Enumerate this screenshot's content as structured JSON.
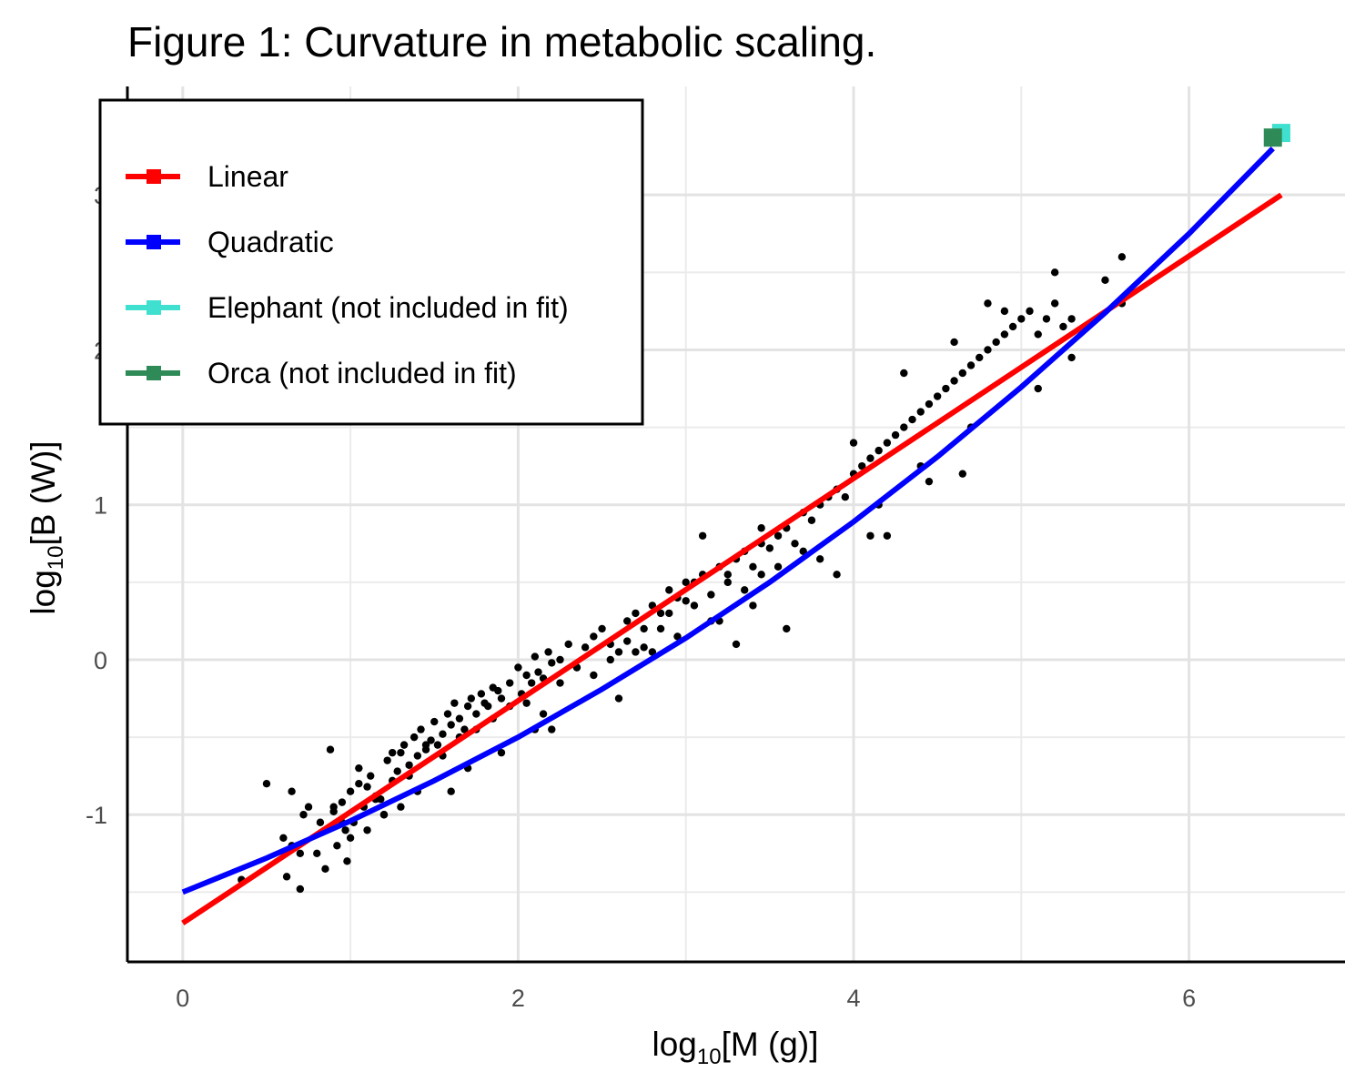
{
  "chart_data": {
    "type": "scatter",
    "title": "Figure 1: Curvature in metabolic scaling.",
    "xlabel": {
      "prefix": "log",
      "subscript": "10",
      "suffix": "[M (g)]"
    },
    "ylabel": {
      "prefix": "log",
      "subscript": "10",
      "suffix": "[B (W)]"
    },
    "xlim": [
      -0.33,
      6.93
    ],
    "ylim": [
      -1.95,
      3.7
    ],
    "x_ticks": [
      0,
      2,
      4,
      6
    ],
    "x_tick_labels": [
      "0",
      "2",
      "4",
      "6"
    ],
    "y_ticks": [
      -1,
      0,
      1,
      2,
      3
    ],
    "y_tick_labels": [
      "-1",
      "0",
      "1",
      "2",
      "3"
    ],
    "grid": true,
    "legend_position": "top-left",
    "colors": {
      "linear": "#ff0000",
      "quadratic": "#0000ff",
      "elephant": "#40e0d0",
      "orca": "#2e8b57",
      "points": "#000000"
    },
    "legend": [
      {
        "label": "Linear",
        "color": "#ff0000"
      },
      {
        "label": "Quadratic",
        "color": "#0000ff"
      },
      {
        "label": "Elephant (not included in fit)",
        "color": "#40e0d0"
      },
      {
        "label": "Orca (not included in fit)",
        "color": "#2e8b57"
      }
    ],
    "series": [
      {
        "name": "Linear",
        "type": "line",
        "x": [
          0,
          6.55
        ],
        "y": [
          -1.7,
          3.0
        ]
      },
      {
        "name": "Quadratic",
        "type": "line",
        "x": [
          0,
          0.5,
          1,
          1.5,
          2,
          2.5,
          3,
          3.5,
          4,
          4.5,
          5,
          5.5,
          6,
          6.5
        ],
        "y": [
          -1.5,
          -1.28,
          -1.04,
          -0.78,
          -0.5,
          -0.19,
          0.14,
          0.5,
          0.89,
          1.31,
          1.76,
          2.24,
          2.75,
          3.3
        ]
      },
      {
        "name": "Elephant (not included in fit)",
        "type": "point",
        "x": [
          6.55
        ],
        "y": [
          3.4
        ]
      },
      {
        "name": "Orca (not included in fit)",
        "type": "point",
        "x": [
          6.5
        ],
        "y": [
          3.37
        ]
      },
      {
        "name": "",
        "type": "scatter",
        "x": [
          0.35,
          0.5,
          0.6,
          0.62,
          0.65,
          0.7,
          0.72,
          0.75,
          0.8,
          0.82,
          0.85,
          0.88,
          0.9,
          0.92,
          0.95,
          0.97,
          0.98,
          1.0,
          1.02,
          1.05,
          1.08,
          1.1,
          1.12,
          1.15,
          1.18,
          1.2,
          1.22,
          1.25,
          1.28,
          1.3,
          1.32,
          1.35,
          1.38,
          1.4,
          1.42,
          1.45,
          1.48,
          1.5,
          1.52,
          1.55,
          1.58,
          1.6,
          1.62,
          1.65,
          1.68,
          1.7,
          1.72,
          1.75,
          1.78,
          1.8,
          1.82,
          1.85,
          1.88,
          1.9,
          1.95,
          2.0,
          2.02,
          2.05,
          2.08,
          2.1,
          2.12,
          2.15,
          2.18,
          2.2,
          2.25,
          2.3,
          2.35,
          2.4,
          2.45,
          2.5,
          2.55,
          2.6,
          2.65,
          2.7,
          2.75,
          2.8,
          2.85,
          2.9,
          2.95,
          3.0,
          3.05,
          3.1,
          3.15,
          3.2,
          3.25,
          3.3,
          3.35,
          3.4,
          3.45,
          3.5,
          3.55,
          3.6,
          3.65,
          3.7,
          3.75,
          3.8,
          3.85,
          3.9,
          3.95,
          4.0,
          4.05,
          4.1,
          4.15,
          4.2,
          4.25,
          4.3,
          4.35,
          4.4,
          4.45,
          4.5,
          4.55,
          4.6,
          4.65,
          4.7,
          4.75,
          4.8,
          4.85,
          4.9,
          4.95,
          5.0,
          5.05,
          5.1,
          5.15,
          5.2,
          5.25,
          5.3,
          5.5,
          5.6,
          5.62,
          1.05,
          1.15,
          1.25,
          1.35,
          1.45,
          1.55,
          1.65,
          1.75,
          1.85,
          1.95,
          2.05,
          2.15,
          2.25,
          2.35,
          2.45,
          2.55,
          2.65,
          2.75,
          2.85,
          2.95,
          3.05,
          3.15,
          3.25,
          3.35,
          3.45,
          3.55,
          0.95,
          1.0,
          1.3,
          1.6,
          1.9,
          2.2,
          2.8,
          3.2,
          3.4,
          3.8,
          4.1,
          4.4,
          4.7,
          3.45,
          3.1,
          4.15,
          4.0,
          4.3,
          4.6,
          4.8,
          5.2,
          4.9,
          0.9,
          0.65,
          0.7,
          1.1,
          1.4,
          1.7,
          2.1,
          2.6,
          3.3,
          3.6,
          3.9,
          4.2,
          4.65,
          5.1,
          5.3,
          5.6,
          4.45,
          2.7,
          2.9,
          3.0,
          3.7,
          1.2
        ],
        "y": [
          -1.42,
          -0.8,
          -1.15,
          -1.4,
          -1.2,
          -1.48,
          -1.0,
          -0.95,
          -1.25,
          -1.05,
          -1.35,
          -0.58,
          -0.98,
          -1.2,
          -0.92,
          -1.1,
          -1.3,
          -0.85,
          -1.05,
          -0.7,
          -0.95,
          -0.82,
          -0.75,
          -0.88,
          -0.9,
          -1.0,
          -0.65,
          -0.78,
          -0.72,
          -0.6,
          -0.55,
          -0.68,
          -0.5,
          -0.62,
          -0.45,
          -0.58,
          -0.52,
          -0.4,
          -0.55,
          -0.48,
          -0.35,
          -0.42,
          -0.28,
          -0.38,
          -0.45,
          -0.3,
          -0.25,
          -0.35,
          -0.22,
          -0.28,
          -0.3,
          -0.18,
          -0.2,
          -0.25,
          -0.15,
          -0.05,
          -0.22,
          -0.1,
          -0.15,
          0.02,
          -0.08,
          -0.12,
          0.05,
          -0.02,
          0.0,
          0.1,
          -0.05,
          0.08,
          0.15,
          0.2,
          0.1,
          0.05,
          0.25,
          0.3,
          0.2,
          0.35,
          0.3,
          0.45,
          0.4,
          0.38,
          0.5,
          0.55,
          0.42,
          0.6,
          0.55,
          0.65,
          0.7,
          0.6,
          0.75,
          0.72,
          0.8,
          0.85,
          0.75,
          0.95,
          0.9,
          1.0,
          1.05,
          1.1,
          1.05,
          1.2,
          1.25,
          1.3,
          1.35,
          1.4,
          1.45,
          1.5,
          1.55,
          1.6,
          1.65,
          1.7,
          1.75,
          1.8,
          1.85,
          1.9,
          1.95,
          2.0,
          2.05,
          2.1,
          2.15,
          2.2,
          2.25,
          2.1,
          2.2,
          2.3,
          2.15,
          2.2,
          2.45,
          2.6,
          2.35,
          -0.8,
          -0.9,
          -0.6,
          -0.75,
          -0.55,
          -0.62,
          -0.5,
          -0.45,
          -0.38,
          -0.3,
          -0.28,
          -0.35,
          -0.15,
          -0.05,
          -0.1,
          0.0,
          0.12,
          0.08,
          0.2,
          0.15,
          0.35,
          0.25,
          0.5,
          0.45,
          0.55,
          0.6,
          -1.05,
          -1.15,
          -0.95,
          -0.85,
          -0.6,
          -0.45,
          0.05,
          0.25,
          0.35,
          0.65,
          0.8,
          1.25,
          1.5,
          0.85,
          0.8,
          1.0,
          1.4,
          1.85,
          2.05,
          2.3,
          2.5,
          2.25,
          -0.95,
          -0.85,
          -1.25,
          -1.1,
          -0.85,
          -0.7,
          -0.45,
          -0.25,
          0.1,
          0.2,
          0.55,
          0.8,
          1.2,
          1.75,
          1.95,
          2.3,
          1.15,
          0.05,
          0.3,
          0.5,
          0.7,
          -1.0
        ]
      }
    ]
  }
}
